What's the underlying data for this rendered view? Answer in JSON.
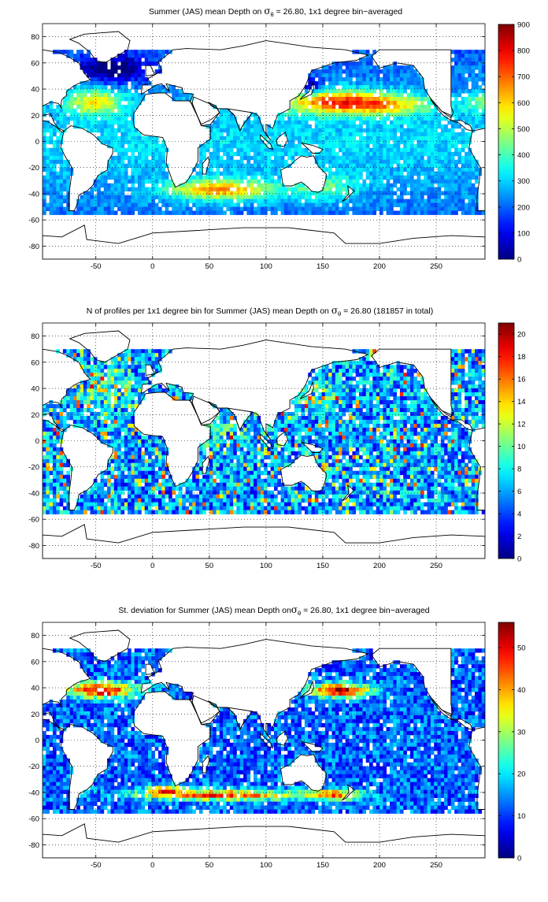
{
  "panels": [
    {
      "id": "mean-depth",
      "title_parts": [
        "Summer (JAS) mean Depth on ",
        "σ",
        "θ",
        " = 26.80, 1x1 degree bin−averaged"
      ],
      "colorbar_ticks": [
        "0",
        "100",
        "200",
        "300",
        "400",
        "500",
        "600",
        "700",
        "800",
        "900"
      ],
      "colorbar_range": [
        0,
        900
      ]
    },
    {
      "id": "profile-count",
      "title_parts": [
        "N of profiles per 1x1 degree bin for Summer (JAS) mean Depth on ",
        "σ",
        "θ",
        " = 26.80 (181857 in total)"
      ],
      "colorbar_ticks": [
        "0",
        "2",
        "4",
        "6",
        "8",
        "10",
        "12",
        "14",
        "16",
        "18",
        "20"
      ],
      "colorbar_range": [
        0,
        21
      ]
    },
    {
      "id": "std-deviation",
      "title_parts": [
        "St. deviation for Summer (JAS) mean Depth on",
        "σ",
        "θ",
        " = 26.80, 1x1 degree bin−averaged"
      ],
      "colorbar_ticks": [
        "0",
        "10",
        "20",
        "30",
        "40",
        "50"
      ],
      "colorbar_range": [
        0,
        56
      ]
    }
  ],
  "map_axes": {
    "x_ticks": [
      "-50",
      "0",
      "50",
      "100",
      "150",
      "200",
      "250"
    ],
    "y_ticks": [
      "80",
      "60",
      "40",
      "20",
      "0",
      "-20",
      "-40",
      "-60",
      "-80"
    ],
    "x_range": [
      -97,
      293
    ],
    "y_range": [
      -90,
      90
    ],
    "grid": "dotted"
  },
  "colors": {
    "colormap": "jet",
    "land_fill": "#ffffff",
    "coastline": "#000000"
  }
}
